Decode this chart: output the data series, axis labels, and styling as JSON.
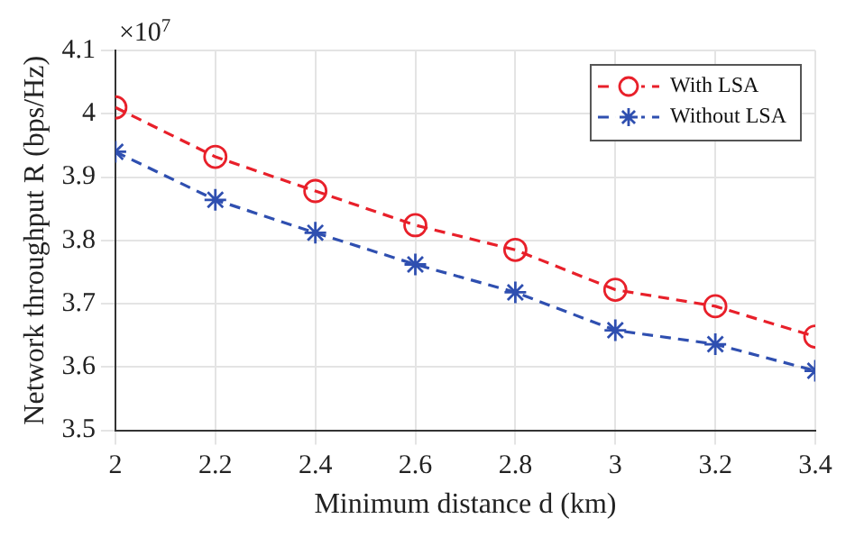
{
  "chart_data": {
    "type": "line",
    "xlabel": "Minimum distance d (km)",
    "ylabel": "Network throughput R (bps/Hz)",
    "annotations": [
      "×10$^{7}$"
    ],
    "x": [
      2,
      2.2,
      2.4,
      2.6,
      2.8,
      3,
      3.2,
      3.4
    ],
    "series": [
      {
        "name": "With LSA",
        "color": "#e8202a",
        "marker": "circle",
        "line_style": "dashed",
        "values": [
          4.01,
          3.932,
          3.878,
          3.824,
          3.785,
          3.722,
          3.696,
          3.648
        ]
      },
      {
        "name": "Without LSA",
        "color": "#2f4fb0",
        "marker": "cross",
        "line_style": "dashed",
        "values": [
          3.94,
          3.864,
          3.812,
          3.762,
          3.718,
          3.658,
          3.636,
          3.594
        ]
      }
    ],
    "xlim": [
      2,
      3.4
    ],
    "xticks": [
      2,
      2.2,
      2.4,
      2.6,
      2.8,
      3,
      3.2,
      3.4
    ],
    "ylim": [
      3.5,
      4.1
    ],
    "yticks": [
      3.5,
      3.6,
      3.7,
      3.8,
      3.9,
      4,
      4.1
    ],
    "grid": true,
    "legend": "top right"
  }
}
